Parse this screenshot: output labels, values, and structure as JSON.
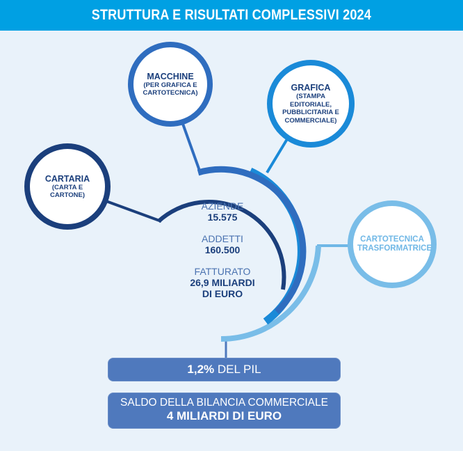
{
  "header": {
    "title": "STRUTTURA E RISULTATI COMPLESSIVI 2024"
  },
  "colors": {
    "banner": "#00a0e3",
    "navy": "#1b3f7c",
    "blue": "#2f6dbf",
    "mid_blue": "#1a8ad8",
    "light_blue": "#6fb7e6",
    "pill": "#4f79bd",
    "background": "#e9f2fa"
  },
  "sectors": {
    "cartaria": {
      "title": "CARTARIA",
      "sub": "(CARTA E CARTONE)"
    },
    "macchine": {
      "title": "MACCHINE",
      "sub": "(PER GRAFICA E CARTOTECNICA)"
    },
    "grafica": {
      "title": "GRAFICA",
      "sub": "(STAMPA EDITORIALE, PUBBLICITARIA E COMMERCIALE)"
    },
    "cartotecnica": {
      "title": "CARTOTECNICA TRASFORMATRICE"
    }
  },
  "stats": {
    "aziende_label": "AZIENDE",
    "aziende_value": "15.575",
    "addetti_label": "ADDETTI",
    "addetti_value": "160.500",
    "fatturato_label": "FATTURATO",
    "fatturato_value": "26,9 MILIARDI DI EURO"
  },
  "pil": {
    "value": "1,2%",
    "label": "DEL PIL"
  },
  "saldo": {
    "label": "SALDO DELLA BILANCIA COMMERCIALE",
    "value": "4 MILIARDI DI EURO"
  }
}
